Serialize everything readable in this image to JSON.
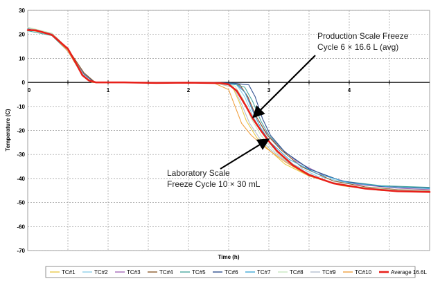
{
  "chart_data": {
    "type": "line",
    "xlabel": "Time (h)",
    "ylabel": "Temperature (C)",
    "xlim": [
      0,
      5
    ],
    "ylim": [
      -70,
      30
    ],
    "x_ticks": [
      0,
      1,
      2,
      3,
      4
    ],
    "y_ticks": [
      30,
      20,
      10,
      0,
      -10,
      -20,
      -30,
      -40,
      -50,
      -60,
      -70
    ],
    "grid": true,
    "legend_position": "bottom",
    "annotations": [
      {
        "lines": [
          "Production Scale Freeze",
          "Cycle 6 × 16.6 L (avg)"
        ],
        "points_to": [
          2.82,
          -14
        ]
      },
      {
        "lines": [
          "Laboratory Scale",
          "Freeze Cycle 10 × 30 mL"
        ],
        "points_to": [
          2.98,
          -24
        ]
      }
    ],
    "series": [
      {
        "name": "TC#1",
        "color": "#e8c94a",
        "points": [
          [
            0,
            22.8
          ],
          [
            0.3,
            20.5
          ],
          [
            0.5,
            13
          ],
          [
            0.68,
            3
          ],
          [
            0.8,
            0
          ],
          [
            1,
            0
          ],
          [
            2.3,
            0
          ],
          [
            2.55,
            -2
          ],
          [
            2.63,
            -8
          ],
          [
            2.72,
            -16
          ],
          [
            2.85,
            -23
          ],
          [
            3.0,
            -28
          ],
          [
            3.2,
            -34
          ],
          [
            3.5,
            -39
          ],
          [
            3.8,
            -42
          ],
          [
            4.2,
            -44
          ],
          [
            4.6,
            -45
          ],
          [
            5,
            -45.3
          ]
        ]
      },
      {
        "name": "TC#2",
        "color": "#8fd0e8",
        "points": [
          [
            0,
            22.4
          ],
          [
            0.3,
            20
          ],
          [
            0.5,
            13
          ],
          [
            0.68,
            3
          ],
          [
            0.8,
            0
          ],
          [
            1,
            0
          ],
          [
            2.3,
            0
          ],
          [
            2.6,
            -1
          ],
          [
            2.7,
            -6
          ],
          [
            2.8,
            -14
          ],
          [
            2.92,
            -21
          ],
          [
            3.05,
            -27
          ],
          [
            3.3,
            -34
          ],
          [
            3.6,
            -39
          ],
          [
            4.0,
            -42
          ],
          [
            4.5,
            -43.5
          ],
          [
            5,
            -44
          ]
        ]
      },
      {
        "name": "TC#3",
        "color": "#a56ab8",
        "points": [
          [
            0,
            22
          ],
          [
            0.3,
            20
          ],
          [
            0.5,
            13.5
          ],
          [
            0.7,
            3
          ],
          [
            0.82,
            0
          ],
          [
            1,
            0
          ],
          [
            2.3,
            0
          ],
          [
            2.62,
            -1
          ],
          [
            2.72,
            -5
          ],
          [
            2.82,
            -13
          ],
          [
            2.95,
            -20
          ],
          [
            3.1,
            -26
          ],
          [
            3.35,
            -33
          ],
          [
            3.7,
            -39
          ],
          [
            4.1,
            -42.5
          ],
          [
            4.6,
            -44
          ],
          [
            5,
            -44.6
          ]
        ]
      },
      {
        "name": "TC#4",
        "color": "#8b5a2b",
        "points": [
          [
            0,
            22
          ],
          [
            0.3,
            20.5
          ],
          [
            0.5,
            14
          ],
          [
            0.7,
            4
          ],
          [
            0.84,
            0
          ],
          [
            1,
            0
          ],
          [
            2.3,
            0
          ],
          [
            2.64,
            -1
          ],
          [
            2.74,
            -6
          ],
          [
            2.84,
            -14
          ],
          [
            2.98,
            -22
          ],
          [
            3.15,
            -28
          ],
          [
            3.4,
            -35
          ],
          [
            3.8,
            -41
          ],
          [
            4.2,
            -43.5
          ],
          [
            4.6,
            -44.6
          ],
          [
            5,
            -45
          ]
        ]
      },
      {
        "name": "TC#5",
        "color": "#4aa8a0",
        "points": [
          [
            0,
            21.5
          ],
          [
            0.3,
            19.5
          ],
          [
            0.5,
            13
          ],
          [
            0.7,
            3
          ],
          [
            0.82,
            0
          ],
          [
            1,
            0
          ],
          [
            2.3,
            0
          ],
          [
            2.55,
            -0.5
          ],
          [
            2.7,
            -2
          ],
          [
            2.8,
            -8
          ],
          [
            2.9,
            -16
          ],
          [
            3.0,
            -22
          ],
          [
            3.2,
            -29
          ],
          [
            3.5,
            -36
          ],
          [
            3.9,
            -41
          ],
          [
            4.4,
            -43
          ],
          [
            5,
            -43.7
          ]
        ]
      },
      {
        "name": "TC#6",
        "color": "#2f4f8f",
        "points": [
          [
            0,
            22.4
          ],
          [
            0.3,
            20
          ],
          [
            0.5,
            13
          ],
          [
            0.7,
            3.5
          ],
          [
            0.83,
            0
          ],
          [
            1,
            0
          ],
          [
            2.3,
            0
          ],
          [
            2.55,
            -0.3
          ],
          [
            2.75,
            -1
          ],
          [
            2.83,
            -6
          ],
          [
            2.92,
            -15
          ],
          [
            3.02,
            -22
          ],
          [
            3.2,
            -29
          ],
          [
            3.5,
            -36
          ],
          [
            3.9,
            -41
          ],
          [
            4.4,
            -43.3
          ],
          [
            5,
            -44
          ]
        ]
      },
      {
        "name": "TC#7",
        "color": "#3fa7d6",
        "points": [
          [
            0,
            22
          ],
          [
            0.3,
            20
          ],
          [
            0.5,
            13
          ],
          [
            0.68,
            3
          ],
          [
            0.8,
            0
          ],
          [
            1,
            0
          ],
          [
            2.3,
            0
          ],
          [
            2.6,
            -1
          ],
          [
            2.7,
            -4
          ],
          [
            2.8,
            -12
          ],
          [
            2.9,
            -19
          ],
          [
            3.02,
            -25
          ],
          [
            3.25,
            -32
          ],
          [
            3.6,
            -38
          ],
          [
            4.0,
            -41.8
          ],
          [
            4.5,
            -43.5
          ],
          [
            5,
            -44.2
          ]
        ]
      },
      {
        "name": "TC#8",
        "color": "#c8e6c0",
        "points": [
          [
            0,
            23
          ],
          [
            0.3,
            20.5
          ],
          [
            0.5,
            13.5
          ],
          [
            0.7,
            3
          ],
          [
            0.82,
            0
          ],
          [
            1,
            0
          ],
          [
            2.3,
            0
          ],
          [
            2.58,
            -1.5
          ],
          [
            2.68,
            -7
          ],
          [
            2.78,
            -15
          ],
          [
            2.9,
            -22
          ],
          [
            3.05,
            -28
          ],
          [
            3.3,
            -35
          ],
          [
            3.7,
            -41
          ],
          [
            4.1,
            -43.5
          ],
          [
            4.6,
            -44.8
          ],
          [
            5,
            -45.2
          ]
        ]
      },
      {
        "name": "TC#9",
        "color": "#b4bfcf",
        "points": [
          [
            0,
            22.6
          ],
          [
            0.3,
            20.2
          ],
          [
            0.5,
            13
          ],
          [
            0.7,
            3
          ],
          [
            0.82,
            0
          ],
          [
            1,
            0
          ],
          [
            2.3,
            0
          ],
          [
            2.56,
            -2
          ],
          [
            2.66,
            -9
          ],
          [
            2.76,
            -17
          ],
          [
            2.88,
            -23
          ],
          [
            3.02,
            -28
          ],
          [
            3.3,
            -35
          ],
          [
            3.7,
            -41
          ],
          [
            4.1,
            -43.8
          ],
          [
            4.6,
            -45
          ],
          [
            5,
            -45.4
          ]
        ]
      },
      {
        "name": "TC#10",
        "color": "#f0a040",
        "points": [
          [
            0,
            22
          ],
          [
            0.3,
            20
          ],
          [
            0.5,
            13
          ],
          [
            0.68,
            3
          ],
          [
            0.8,
            0
          ],
          [
            1,
            0
          ],
          [
            2.3,
            0
          ],
          [
            2.5,
            -3
          ],
          [
            2.58,
            -10
          ],
          [
            2.66,
            -17
          ],
          [
            2.78,
            -22
          ],
          [
            2.95,
            -27
          ],
          [
            3.2,
            -33
          ],
          [
            3.5,
            -39
          ],
          [
            3.9,
            -43
          ],
          [
            4.4,
            -45
          ],
          [
            5,
            -45.6
          ]
        ]
      },
      {
        "name": "Average 16.6L",
        "color": "#e8201a",
        "points": [
          [
            0,
            21.8
          ],
          [
            0.1,
            21.7
          ],
          [
            0.3,
            19.8
          ],
          [
            0.5,
            14
          ],
          [
            0.6,
            8
          ],
          [
            0.68,
            3
          ],
          [
            0.76,
            0.8
          ],
          [
            0.85,
            0
          ],
          [
            1.2,
            0
          ],
          [
            1.6,
            -0.2
          ],
          [
            2.0,
            -0.1
          ],
          [
            2.4,
            -0.3
          ],
          [
            2.5,
            -0.8
          ],
          [
            2.6,
            -3.5
          ],
          [
            2.7,
            -9
          ],
          [
            2.8,
            -15
          ],
          [
            2.9,
            -20
          ],
          [
            3.0,
            -24.5
          ],
          [
            3.1,
            -28.5
          ],
          [
            3.3,
            -34.5
          ],
          [
            3.5,
            -38.5
          ],
          [
            3.8,
            -42
          ],
          [
            4.2,
            -44.2
          ],
          [
            4.6,
            -45.3
          ],
          [
            5,
            -45.6
          ]
        ]
      }
    ]
  }
}
